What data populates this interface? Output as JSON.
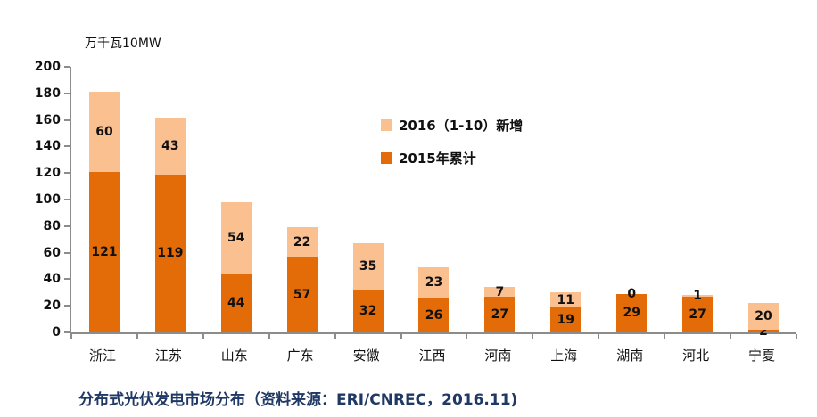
{
  "axis_title": "万千瓦10MW",
  "caption": "分布式光伏发电市场分布（资料来源：ERI/CNREC，2016.11)",
  "colors": {
    "dark_orange": "#E36C09",
    "light_orange": "#FAC090",
    "axis_gray": "#8C8C8C",
    "caption_navy": "#1F3864",
    "label_black": "#111111"
  },
  "chart_data": {
    "type": "bar",
    "stacked": true,
    "title": "",
    "xlabel": "",
    "ylabel": "万千瓦10MW",
    "categories": [
      "浙江",
      "江苏",
      "山东",
      "广东",
      "安徽",
      "江西",
      "河南",
      "上海",
      "湖南",
      "河北",
      "宁夏"
    ],
    "series": [
      {
        "name": "2015年累计",
        "color": "#E36C09",
        "values": [
          121,
          119,
          44,
          57,
          32,
          26,
          27,
          19,
          29,
          27,
          2
        ]
      },
      {
        "name": "2016（1-10）新增",
        "color": "#FAC090",
        "values": [
          60,
          43,
          54,
          22,
          35,
          23,
          7,
          11,
          0,
          1,
          20
        ]
      }
    ],
    "totals": [
      181,
      162,
      98,
      79,
      67,
      49,
      34,
      30,
      29,
      28,
      22
    ],
    "ylim": [
      0,
      200
    ],
    "ytick_step": 20,
    "grid": false,
    "legend_position": "inside-upper-middle",
    "data_labels": "inside-center"
  }
}
